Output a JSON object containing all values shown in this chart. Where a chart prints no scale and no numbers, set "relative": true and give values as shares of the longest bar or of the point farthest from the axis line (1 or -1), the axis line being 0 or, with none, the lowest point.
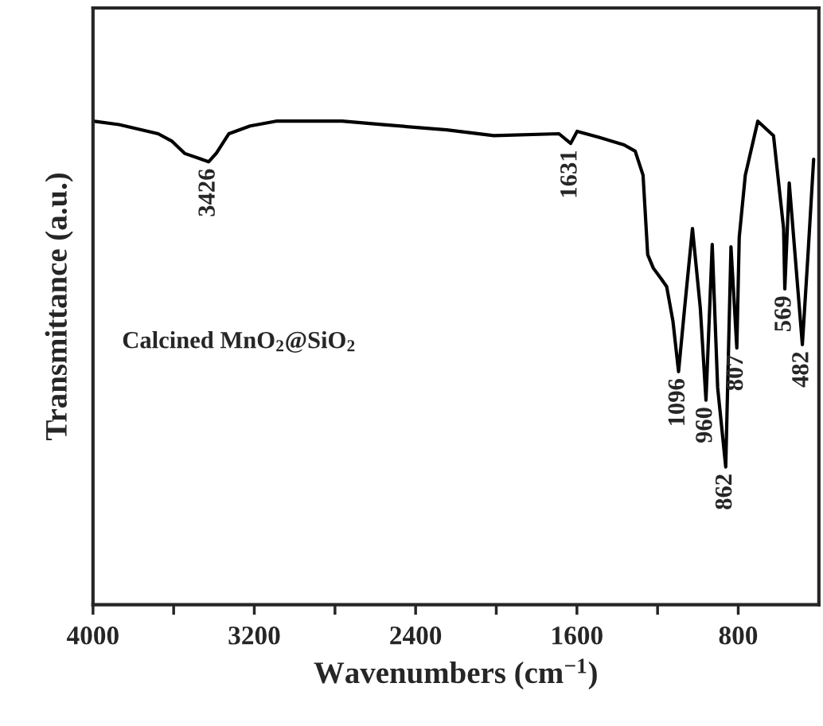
{
  "chart_data": {
    "type": "line",
    "relative": true,
    "xlabel": "Wavenumbers (cm$^{−1}$)",
    "ylabel": "Transmittance (a.u.)",
    "xlim": [
      4000,
      400
    ],
    "xticks": [
      4000,
      {
        "value": 3600,
        "label": null
      },
      3200,
      {
        "value": 2800,
        "label": null
      },
      2400,
      {
        "value": 2000,
        "label": null
      },
      1600,
      {
        "value": 1200,
        "label": null
      },
      800
    ],
    "series": [
      {
        "color": "#000000",
        "x": [
          4000,
          3871,
          3677,
          3610,
          3544,
          3426,
          3388,
          3326,
          3221,
          3092,
          2765,
          2570,
          2246,
          2012,
          1689,
          1631,
          1599,
          1494,
          1366,
          1311,
          1272,
          1249,
          1221,
          1182,
          1155,
          1124,
          1096,
          1066,
          1027,
          988,
          960,
          929,
          902,
          862,
          836,
          807,
          795,
          765,
          703,
          625,
          575,
          569,
          547,
          482,
          454,
          426
        ],
        "values": [
          1.0,
          0.993,
          0.974,
          0.959,
          0.933,
          0.916,
          0.934,
          0.974,
          0.99,
          1.0,
          1.0,
          0.993,
          0.982,
          0.97,
          0.974,
          0.954,
          0.979,
          0.967,
          0.951,
          0.938,
          0.888,
          0.724,
          0.696,
          0.674,
          0.658,
          0.587,
          0.482,
          0.613,
          0.778,
          0.613,
          0.423,
          0.745,
          0.449,
          0.285,
          0.74,
          0.531,
          0.76,
          0.888,
          1.0,
          0.97,
          0.778,
          0.653,
          0.872,
          0.538,
          0.724,
          0.921
        ]
      }
    ],
    "annotations": [
      {
        "text": "3426",
        "x": 3426,
        "y": 0.916
      },
      {
        "text": "1631",
        "x": 1631,
        "y": 0.954
      },
      {
        "text": "1096",
        "x": 1096,
        "y": 0.482
      },
      {
        "text": "960",
        "x": 960,
        "y": 0.423
      },
      {
        "text": "862",
        "x": 862,
        "y": 0.285
      },
      {
        "text": "807",
        "x": 807,
        "y": 0.531
      },
      {
        "text": "569",
        "x": 569,
        "y": 0.653
      },
      {
        "text": "482",
        "x": 482,
        "y": 0.538
      },
      "Calcined MnO$_{2}$@SiO$_{2}$"
    ]
  }
}
